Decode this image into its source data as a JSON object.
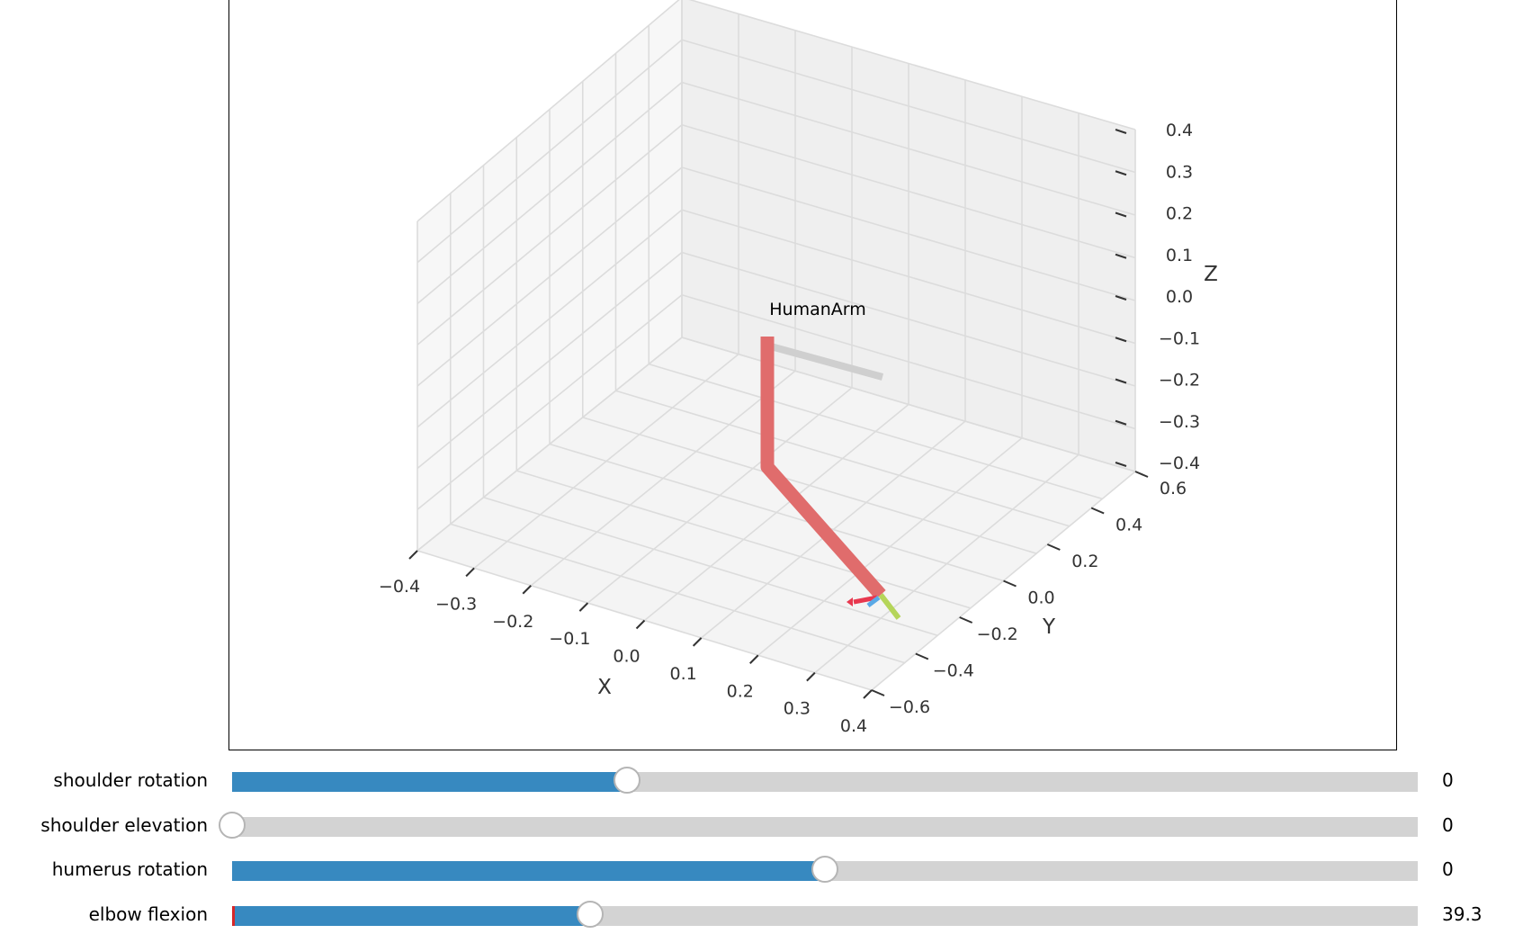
{
  "plot": {
    "title": "HumanArm",
    "xlabel": "X",
    "ylabel": "Y",
    "zlabel": "Z",
    "x_ticks": [
      "−0.4",
      "−0.3",
      "−0.2",
      "−0.1",
      "0.0",
      "0.1",
      "0.2",
      "0.3",
      "0.4"
    ],
    "y_ticks": [
      "−0.6",
      "−0.4",
      "−0.2",
      "0.0",
      "0.2",
      "0.4",
      "0.6"
    ],
    "z_ticks": [
      "0.4",
      "0.3",
      "0.2",
      "0.1",
      "0.0",
      "−0.1",
      "−0.2",
      "−0.3",
      "−0.4"
    ],
    "arm_color": "#e06c6c",
    "shadow_color": "#cfcfcf",
    "frame_colors": {
      "x": "#e8384f",
      "y": "#5aa9e6",
      "z": "#b5d55a"
    }
  },
  "sliders": [
    {
      "label": "shoulder rotation",
      "value": "0",
      "fraction": 0.333,
      "fill": true,
      "init_marker": false
    },
    {
      "label": "shoulder elevation",
      "value": "0",
      "fraction": 0.0,
      "fill": false,
      "init_marker": false
    },
    {
      "label": "humerus rotation",
      "value": "0",
      "fraction": 0.5,
      "fill": true,
      "init_marker": false
    },
    {
      "label": "elbow flexion",
      "value": "39.3",
      "fraction": 0.302,
      "fill": true,
      "init_marker": true
    }
  ],
  "colors": {
    "accent": "#3789c0",
    "track": "#d3d3d3"
  }
}
